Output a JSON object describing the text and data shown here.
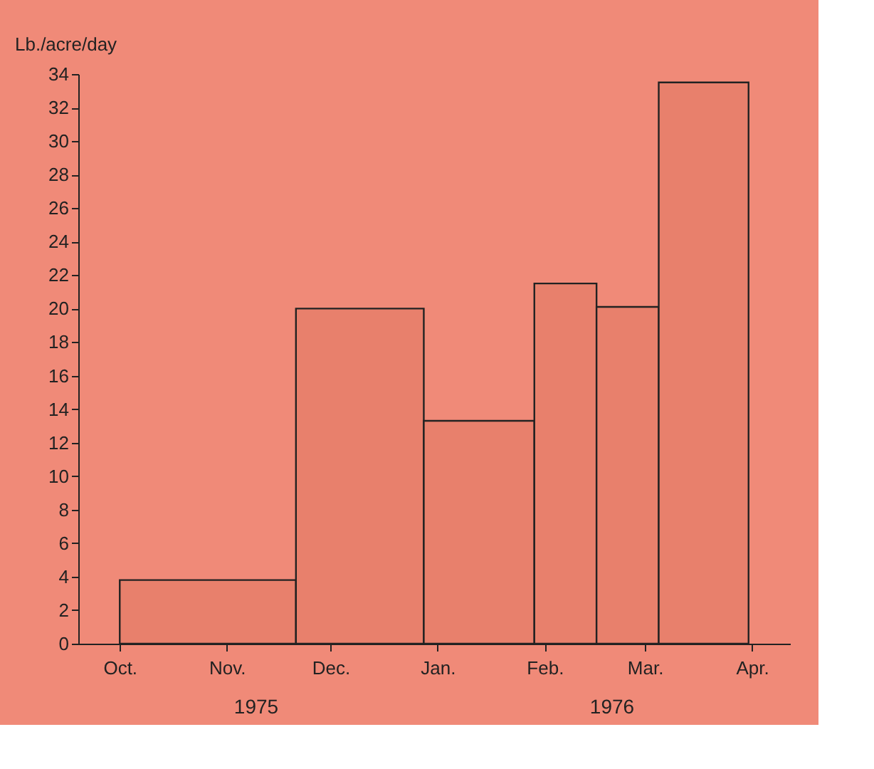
{
  "chart_data": {
    "type": "histogram",
    "ylabel": "Lb./acre/day",
    "bins": [
      "1975-10-01",
      "1975-11-21",
      "1975-12-28",
      "1976-01-29",
      "1976-02-16",
      "1976-03-05",
      "1976-03-31"
    ],
    "values": [
      3.8,
      20,
      13.3,
      21.5,
      20.1,
      33.5
    ],
    "color": "#e8806c",
    "xlim": [
      "1975-09-19",
      "1976-04-12"
    ],
    "xticks": [
      {
        "value": "1975-10-01",
        "label": "Oct."
      },
      {
        "value": "1975-11-01",
        "label": "Nov."
      },
      {
        "value": "1975-12-01",
        "label": "Dec."
      },
      {
        "value": "1976-01-01",
        "label": "Jan."
      },
      {
        "value": "1976-02-01",
        "label": "Feb."
      },
      {
        "value": "1976-03-01",
        "label": "Mar."
      },
      {
        "value": "1976-04-01",
        "label": "Apr."
      }
    ],
    "ylim": [
      0,
      34
    ],
    "yticks": [
      0,
      2,
      4,
      6,
      8,
      10,
      12,
      14,
      16,
      18,
      20,
      22,
      24,
      26,
      28,
      30,
      32,
      34
    ],
    "annotations": [
      "1975",
      "1976"
    ],
    "grid": false
  }
}
